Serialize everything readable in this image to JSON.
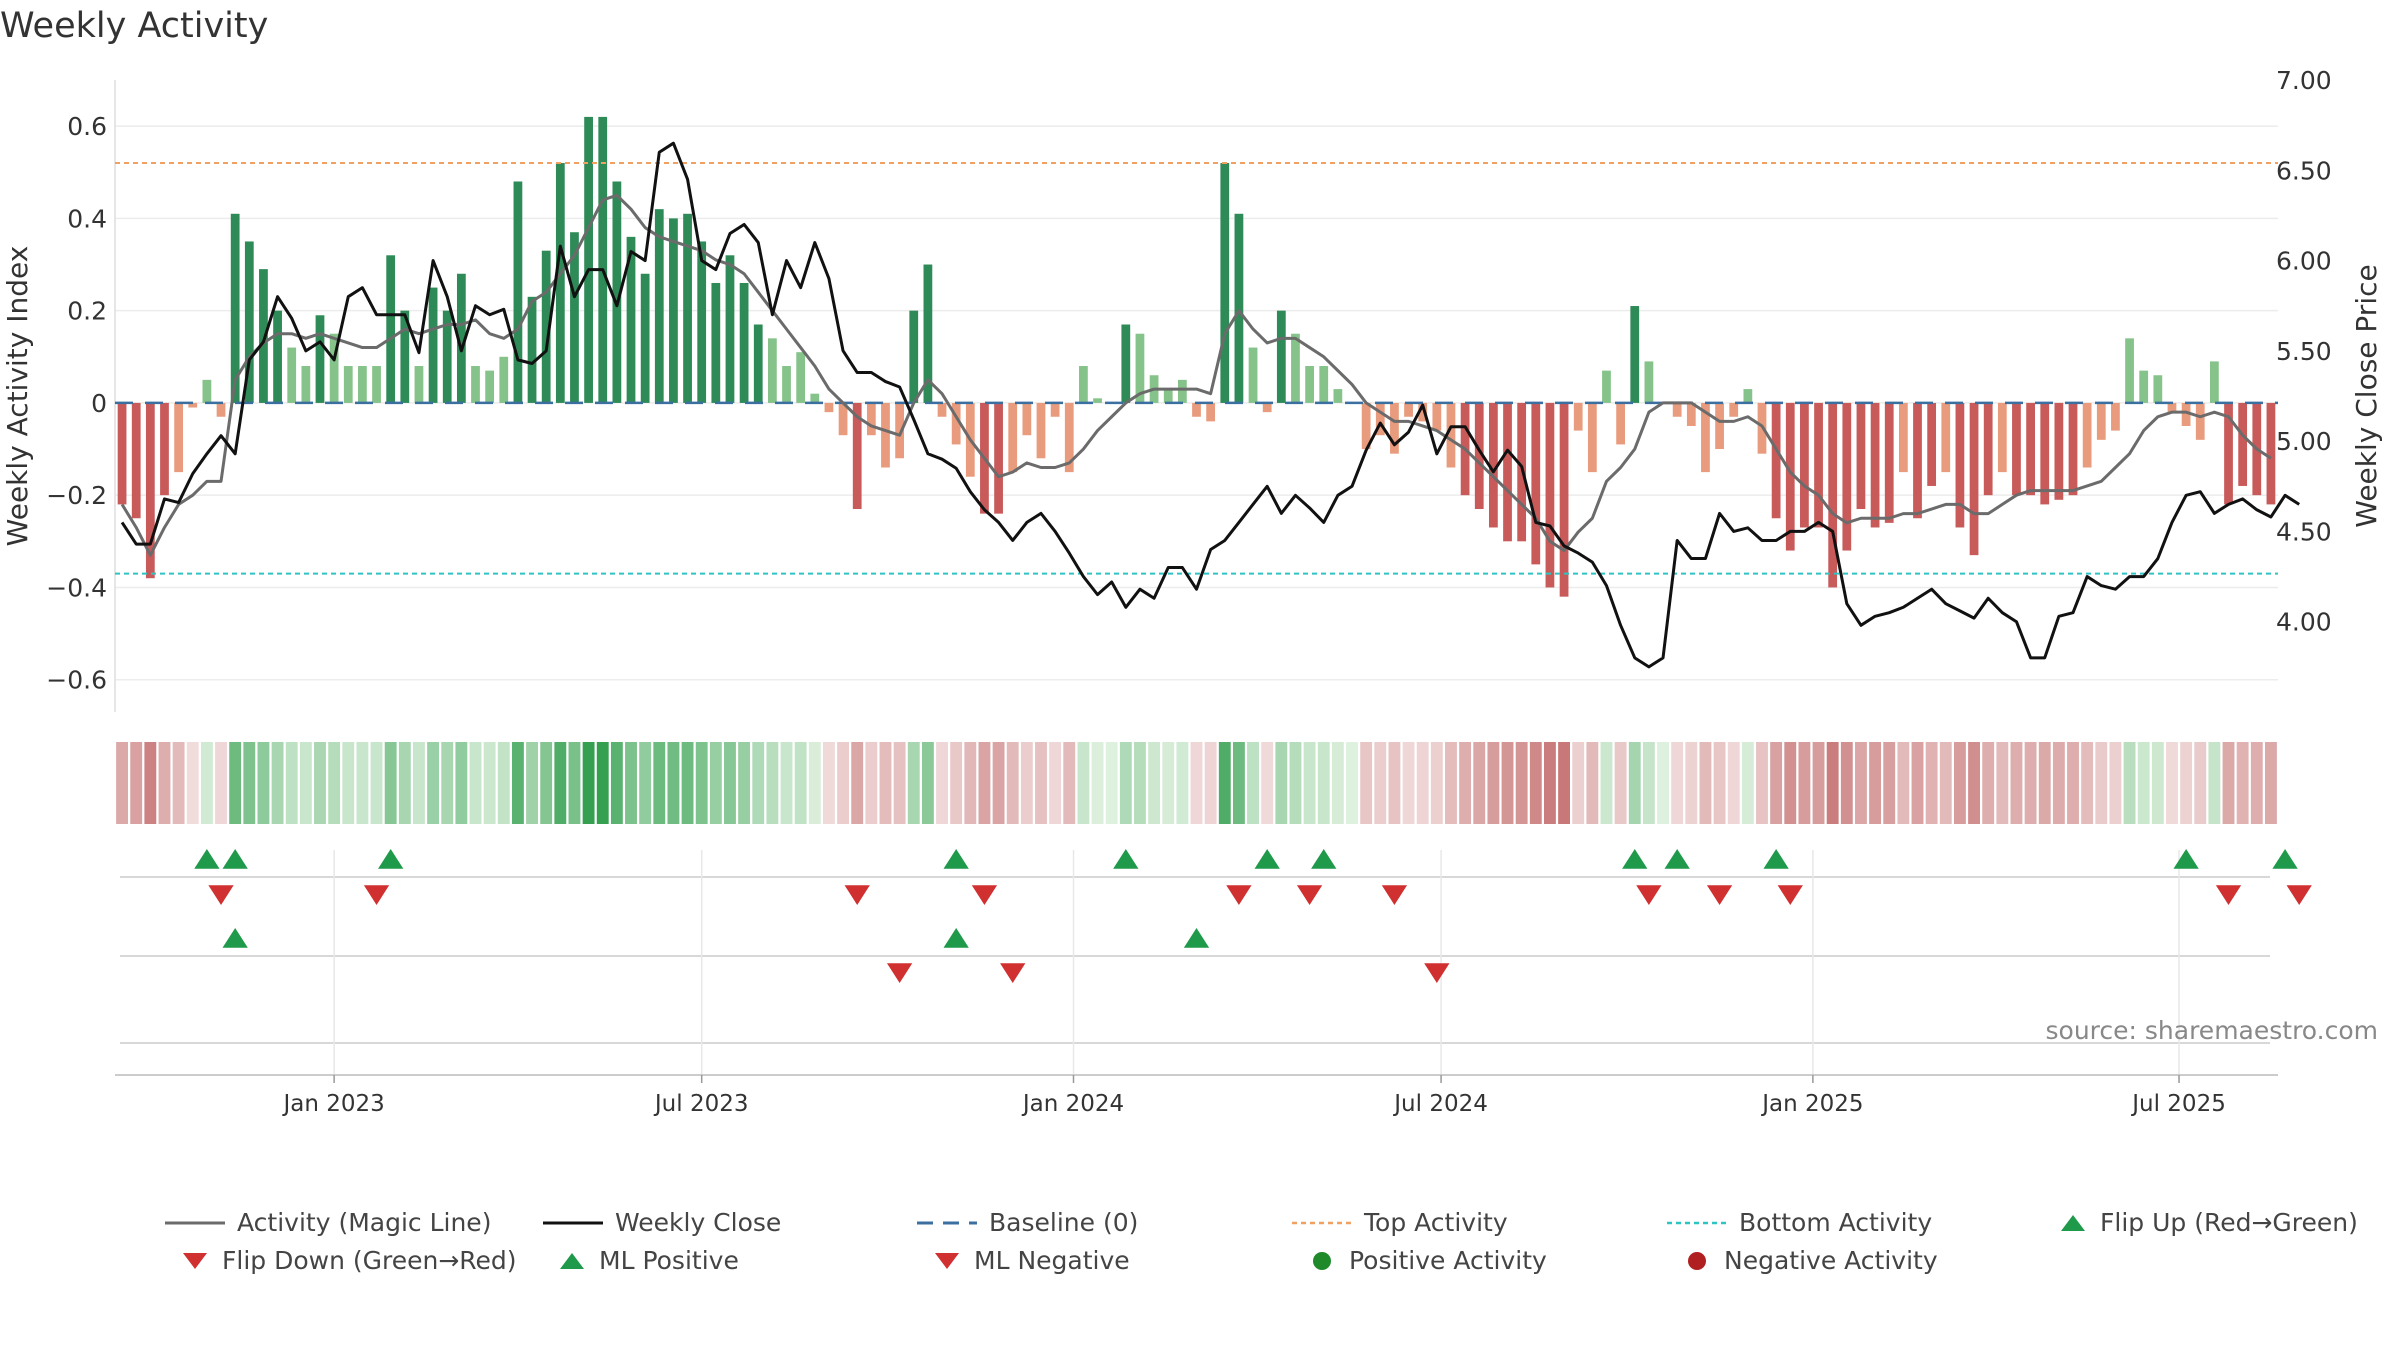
{
  "title": "Weekly Activity",
  "source": "source: sharemaestro.com",
  "colors": {
    "strong_green": "#2e8a57",
    "light_green": "#86c38a",
    "strong_red": "#c85a5a",
    "light_red": "#e99b7d",
    "magic_line": "#6b6b6b",
    "close": "#111111",
    "baseline": "#3b6fa0",
    "top": "#f0a060",
    "bottom": "#2ec4c4",
    "up_marker": "#1f9a4a",
    "down_marker": "#d03030"
  },
  "chart_data": {
    "type": "bar",
    "title": "Weekly Activity",
    "ylabel": "Weekly Activity Index",
    "y2label": "Weekly Close Price",
    "ylim": [
      -0.67,
      0.7
    ],
    "y2lim": [
      3.5,
      7.0
    ],
    "yticks": [
      0.6,
      0.4,
      0.2,
      0,
      -0.2,
      -0.4,
      -0.6
    ],
    "ytick_labels": [
      "0.6",
      "0.4",
      "0.2",
      "0",
      "−0.2",
      "−0.4",
      "−0.6"
    ],
    "y2ticks": [
      7.0,
      6.5,
      6.0,
      5.5,
      5.0,
      4.5,
      4.0
    ],
    "y2tick_labels": [
      "7.00",
      "6.50",
      "6.00",
      "5.50",
      "5.00",
      "4.50",
      "4.00"
    ],
    "top_activity": 0.52,
    "bottom_activity": -0.37,
    "start_week": 0,
    "x_ticks": [
      {
        "label": "Jan 2023",
        "week": 15
      },
      {
        "label": "Jul 2023",
        "week": 41
      },
      {
        "label": "Jan 2024",
        "week": 67.3
      },
      {
        "label": "Jul 2024",
        "week": 93.3
      },
      {
        "label": "Jan 2025",
        "week": 119.6
      },
      {
        "label": "Jul 2025",
        "week": 145.5
      }
    ],
    "activity": [
      -0.22,
      -0.25,
      -0.38,
      -0.2,
      -0.15,
      -0.01,
      0.05,
      -0.03,
      0.41,
      0.35,
      0.29,
      0.2,
      0.12,
      0.08,
      0.19,
      0.15,
      0.08,
      0.08,
      0.08,
      0.32,
      0.2,
      0.08,
      0.25,
      0.2,
      0.28,
      0.08,
      0.07,
      0.1,
      0.48,
      0.23,
      0.33,
      0.52,
      0.37,
      0.62,
      0.62,
      0.48,
      0.36,
      0.28,
      0.42,
      0.4,
      0.41,
      0.35,
      0.26,
      0.32,
      0.26,
      0.17,
      0.14,
      0.08,
      0.11,
      0.02,
      -0.02,
      -0.07,
      -0.23,
      -0.07,
      -0.14,
      -0.12,
      0.2,
      0.3,
      -0.03,
      -0.09,
      -0.16,
      -0.24,
      -0.24,
      -0.15,
      -0.07,
      -0.12,
      -0.03,
      -0.15,
      0.08,
      0.01,
      0.0,
      0.17,
      0.15,
      0.06,
      0.03,
      0.05,
      -0.03,
      -0.04,
      0.52,
      0.41,
      0.12,
      -0.02,
      0.2,
      0.15,
      0.08,
      0.08,
      0.03,
      0.0,
      -0.1,
      -0.07,
      -0.11,
      -0.03,
      -0.04,
      -0.06,
      -0.14,
      -0.2,
      -0.23,
      -0.27,
      -0.3,
      -0.3,
      -0.35,
      -0.4,
      -0.42,
      -0.06,
      -0.15,
      0.07,
      -0.09,
      0.21,
      0.09,
      0.0,
      -0.03,
      -0.05,
      -0.15,
      -0.1,
      -0.03,
      0.03,
      -0.11,
      -0.25,
      -0.32,
      -0.27,
      -0.27,
      -0.4,
      -0.32,
      -0.23,
      -0.27,
      -0.26,
      -0.15,
      -0.25,
      -0.18,
      -0.15,
      -0.27,
      -0.33,
      -0.2,
      -0.15,
      -0.2,
      -0.2,
      -0.22,
      -0.21,
      -0.2,
      -0.14,
      -0.08,
      -0.06,
      0.14,
      0.07,
      0.06,
      -0.02,
      -0.05,
      -0.08,
      0.09,
      -0.22,
      -0.18,
      -0.2,
      -0.22
    ],
    "magic_line": [
      -0.22,
      -0.27,
      -0.33,
      -0.27,
      -0.22,
      -0.2,
      -0.17,
      -0.17,
      0.05,
      0.1,
      0.13,
      0.15,
      0.15,
      0.14,
      0.15,
      0.14,
      0.13,
      0.12,
      0.12,
      0.14,
      0.16,
      0.15,
      0.16,
      0.17,
      0.17,
      0.18,
      0.15,
      0.14,
      0.16,
      0.22,
      0.24,
      0.28,
      0.32,
      0.38,
      0.44,
      0.45,
      0.42,
      0.38,
      0.36,
      0.35,
      0.34,
      0.33,
      0.31,
      0.3,
      0.28,
      0.24,
      0.2,
      0.16,
      0.12,
      0.08,
      0.03,
      0.0,
      -0.03,
      -0.05,
      -0.06,
      -0.07,
      0.0,
      0.05,
      0.02,
      -0.03,
      -0.08,
      -0.12,
      -0.16,
      -0.15,
      -0.13,
      -0.14,
      -0.14,
      -0.13,
      -0.1,
      -0.06,
      -0.03,
      0.0,
      0.02,
      0.03,
      0.03,
      0.03,
      0.03,
      0.02,
      0.15,
      0.2,
      0.16,
      0.13,
      0.14,
      0.14,
      0.12,
      0.1,
      0.07,
      0.04,
      0.0,
      -0.02,
      -0.04,
      -0.04,
      -0.05,
      -0.06,
      -0.08,
      -0.1,
      -0.13,
      -0.16,
      -0.19,
      -0.22,
      -0.25,
      -0.3,
      -0.32,
      -0.28,
      -0.25,
      -0.17,
      -0.14,
      -0.1,
      -0.02,
      0.0,
      0.0,
      0.0,
      -0.02,
      -0.04,
      -0.04,
      -0.03,
      -0.05,
      -0.1,
      -0.15,
      -0.18,
      -0.2,
      -0.24,
      -0.26,
      -0.25,
      -0.25,
      -0.25,
      -0.24,
      -0.24,
      -0.23,
      -0.22,
      -0.22,
      -0.24,
      -0.24,
      -0.22,
      -0.2,
      -0.19,
      -0.19,
      -0.19,
      -0.19,
      -0.18,
      -0.17,
      -0.14,
      -0.11,
      -0.06,
      -0.03,
      -0.02,
      -0.02,
      -0.03,
      -0.02,
      -0.03,
      -0.07,
      -0.1,
      -0.12
    ],
    "weekly_close": [
      4.55,
      4.43,
      4.43,
      4.68,
      4.66,
      4.82,
      4.93,
      5.03,
      4.93,
      5.45,
      5.55,
      5.8,
      5.68,
      5.5,
      5.55,
      5.45,
      5.8,
      5.85,
      5.7,
      5.7,
      5.7,
      5.49,
      6.0,
      5.8,
      5.5,
      5.75,
      5.7,
      5.73,
      5.45,
      5.43,
      5.5,
      6.08,
      5.8,
      5.95,
      5.95,
      5.75,
      6.05,
      6.0,
      6.6,
      6.65,
      6.45,
      6.0,
      5.95,
      6.15,
      6.2,
      6.1,
      5.7,
      6.0,
      5.85,
      6.1,
      5.9,
      5.5,
      5.38,
      5.38,
      5.33,
      5.3,
      5.12,
      4.93,
      4.9,
      4.85,
      4.72,
      4.62,
      4.55,
      4.45,
      4.55,
      4.6,
      4.5,
      4.38,
      4.25,
      4.15,
      4.22,
      4.08,
      4.18,
      4.13,
      4.3,
      4.3,
      4.18,
      4.4,
      4.45,
      4.55,
      4.65,
      4.75,
      4.6,
      4.7,
      4.63,
      4.55,
      4.7,
      4.75,
      4.95,
      5.1,
      4.98,
      5.05,
      5.2,
      4.93,
      5.08,
      5.08,
      4.95,
      4.83,
      4.95,
      4.86,
      4.55,
      4.53,
      4.42,
      4.38,
      4.33,
      4.2,
      3.98,
      3.8,
      3.75,
      3.8,
      4.45,
      4.35,
      4.35,
      4.6,
      4.5,
      4.52,
      4.45,
      4.45,
      4.5,
      4.5,
      4.55,
      4.5,
      4.1,
      3.98,
      4.03,
      4.05,
      4.08,
      4.13,
      4.18,
      4.1,
      4.06,
      4.02,
      4.13,
      4.05,
      4.0,
      3.8,
      3.8,
      4.03,
      4.05,
      4.25,
      4.2,
      4.18,
      4.25,
      4.25,
      4.35,
      4.55,
      4.7,
      4.72,
      4.6,
      4.65,
      4.68,
      4.62,
      4.58,
      4.7,
      4.65
    ],
    "ml_positive": [
      8,
      59,
      76
    ],
    "ml_negative": [
      55,
      63,
      93
    ]
  },
  "signals": {
    "flip_up": [
      6,
      8,
      19,
      59,
      71,
      81,
      85,
      107,
      110,
      117,
      146,
      153
    ],
    "flip_down": [
      7,
      18,
      52,
      61,
      79,
      84,
      90,
      108,
      113,
      118,
      149,
      154
    ]
  },
  "legend": [
    {
      "label": "Activity (Magic Line)",
      "icon": "solid-gray-line"
    },
    {
      "label": "Weekly Close",
      "icon": "solid-black-line"
    },
    {
      "label": "Baseline (0)",
      "icon": "dashed-blue-line"
    },
    {
      "label": "Top Activity",
      "icon": "dotted-orange-line"
    },
    {
      "label": "Bottom Activity",
      "icon": "dotted-cyan-line"
    },
    {
      "label": "Flip Up (Red→Green)",
      "icon": "green-up-triangle"
    },
    {
      "label": "Flip Down (Green→Red)",
      "icon": "red-down-triangle"
    },
    {
      "label": "ML Positive",
      "icon": "green-up-triangle"
    },
    {
      "label": "ML Negative",
      "icon": "red-down-triangle"
    },
    {
      "label": "Positive Activity",
      "icon": "green-circle"
    },
    {
      "label": "Negative Activity",
      "icon": "red-circle"
    }
  ]
}
